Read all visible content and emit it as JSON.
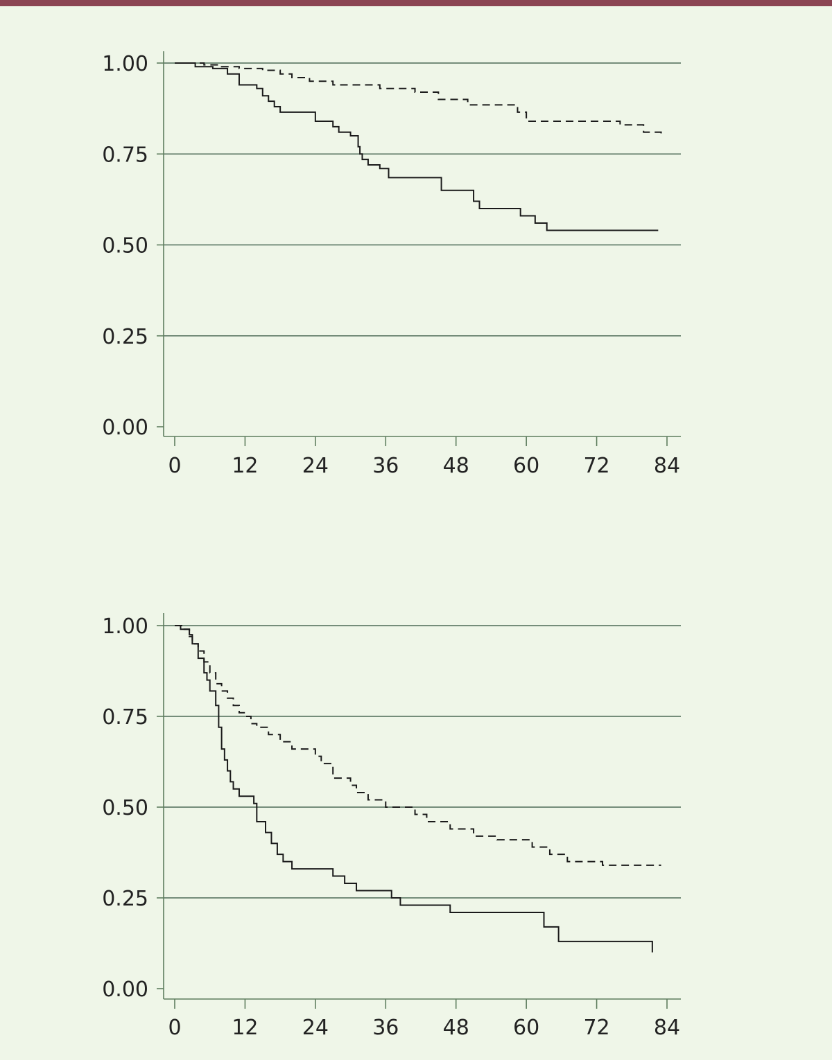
{
  "colors": {
    "background": "#eff6e8",
    "top_bar": "#8b4553",
    "axis": "#5e7d5e",
    "gridline": "#4d6a56",
    "curve": "#1a1a1a"
  },
  "chart_data": [
    {
      "type": "line",
      "step": true,
      "title": "",
      "xlabel": "",
      "ylabel": "",
      "xlim": [
        0,
        84
      ],
      "ylim": [
        0,
        1
      ],
      "x_ticks": [
        0,
        12,
        24,
        36,
        48,
        60,
        72,
        84
      ],
      "x_tick_labels": [
        "0",
        "12",
        "24",
        "36",
        "48",
        "60",
        "72",
        "84"
      ],
      "y_ticks": [
        0,
        0.25,
        0.5,
        0.75,
        1
      ],
      "y_tick_labels": [
        "0.00",
        "0.25",
        "0.50",
        "0.75",
        "1.00"
      ],
      "grid": "horizontal",
      "series": [
        {
          "style": "solid",
          "x": [
            0,
            3.5,
            6.5,
            9,
            11,
            14,
            15,
            16,
            17,
            18,
            21.5,
            24,
            27,
            28,
            30,
            31.3,
            31.6,
            32,
            33,
            35,
            36.5,
            45.5,
            51,
            52,
            59,
            61.5,
            63.5,
            82.5
          ],
          "y": [
            1,
            0.99,
            0.985,
            0.97,
            0.94,
            0.93,
            0.91,
            0.895,
            0.88,
            0.865,
            0.865,
            0.84,
            0.825,
            0.81,
            0.8,
            0.77,
            0.75,
            0.735,
            0.72,
            0.71,
            0.685,
            0.65,
            0.62,
            0.6,
            0.58,
            0.56,
            0.54,
            0.54
          ]
        },
        {
          "style": "dashed",
          "x": [
            0,
            5,
            8,
            11,
            15,
            18,
            20,
            23,
            27,
            35,
            41,
            45,
            50,
            58.5,
            60,
            76,
            80,
            83
          ],
          "y": [
            1,
            0.995,
            0.99,
            0.985,
            0.98,
            0.97,
            0.96,
            0.95,
            0.94,
            0.93,
            0.92,
            0.9,
            0.885,
            0.865,
            0.84,
            0.83,
            0.81,
            0.8
          ]
        }
      ]
    },
    {
      "type": "line",
      "step": true,
      "title": "",
      "xlabel": "",
      "ylabel": "",
      "xlim": [
        0,
        84
      ],
      "ylim": [
        0,
        1
      ],
      "x_ticks": [
        0,
        12,
        24,
        36,
        48,
        60,
        72,
        84
      ],
      "x_tick_labels": [
        "0",
        "12",
        "24",
        "36",
        "48",
        "60",
        "72",
        "84"
      ],
      "y_ticks": [
        0,
        0.25,
        0.5,
        0.75,
        1
      ],
      "y_tick_labels": [
        "0.00",
        "0.25",
        "0.50",
        "0.75",
        "1.00"
      ],
      "grid": "horizontal",
      "series": [
        {
          "style": "solid",
          "x": [
            0,
            1,
            2.5,
            3,
            4,
            5,
            5.5,
            6,
            7,
            7.5,
            8,
            8.5,
            9,
            9.5,
            10,
            11,
            13.5,
            14,
            15.5,
            16.5,
            17.5,
            18.5,
            20,
            27,
            29,
            31,
            37,
            38.5,
            47,
            63,
            65.5,
            81.5
          ],
          "y": [
            1,
            0.99,
            0.975,
            0.95,
            0.91,
            0.87,
            0.85,
            0.82,
            0.78,
            0.72,
            0.66,
            0.63,
            0.6,
            0.57,
            0.55,
            0.53,
            0.51,
            0.46,
            0.43,
            0.4,
            0.37,
            0.35,
            0.33,
            0.31,
            0.29,
            0.27,
            0.25,
            0.23,
            0.21,
            0.17,
            0.13,
            0.1
          ]
        },
        {
          "style": "dashed",
          "x": [
            0,
            1.5,
            2.5,
            3,
            4,
            5,
            6,
            7,
            8,
            9,
            10,
            11,
            12,
            13,
            14,
            16,
            18,
            20,
            24,
            25,
            27,
            30,
            31,
            33,
            36,
            41,
            43,
            47,
            51,
            55,
            61,
            64,
            67,
            73,
            83
          ],
          "y": [
            1,
            0.99,
            0.97,
            0.95,
            0.93,
            0.9,
            0.87,
            0.84,
            0.82,
            0.8,
            0.78,
            0.76,
            0.75,
            0.73,
            0.72,
            0.7,
            0.68,
            0.66,
            0.64,
            0.62,
            0.58,
            0.56,
            0.54,
            0.52,
            0.5,
            0.48,
            0.46,
            0.44,
            0.42,
            0.41,
            0.39,
            0.37,
            0.35,
            0.34,
            0.34
          ]
        }
      ]
    }
  ]
}
